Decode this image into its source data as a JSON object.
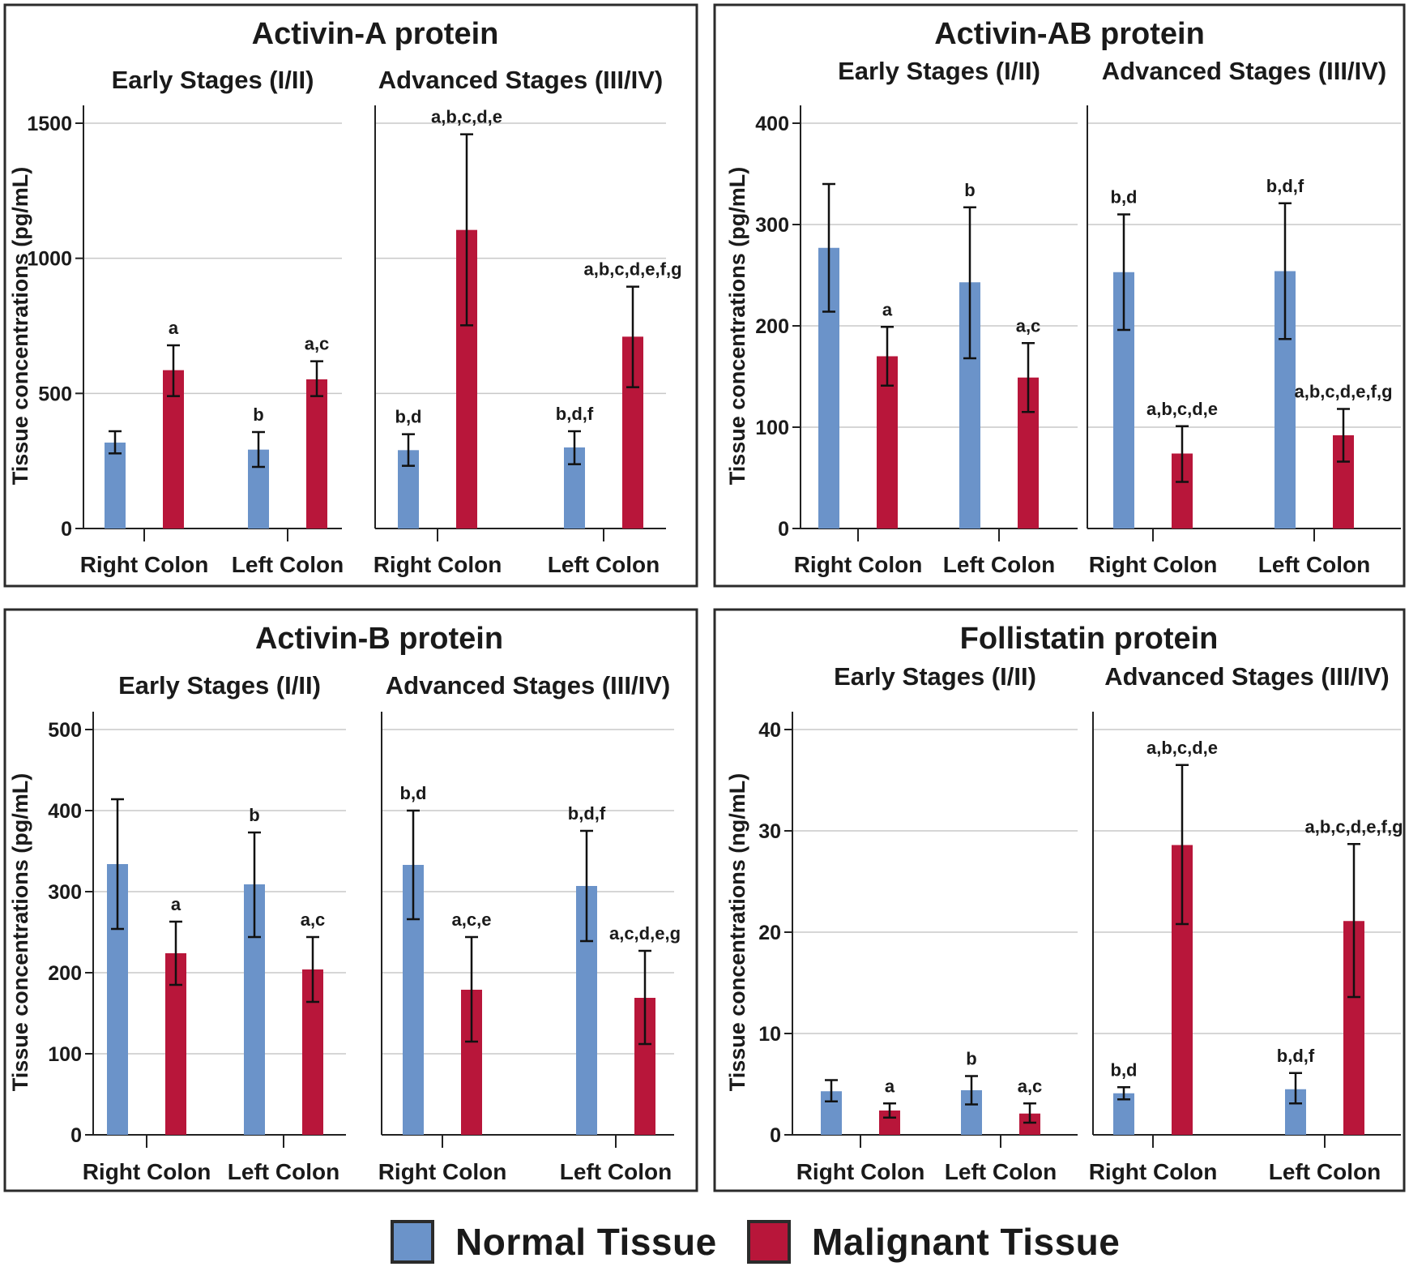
{
  "colors": {
    "normal": "#6b93c9",
    "malignant": "#b8163a",
    "frame": "#2b2b2b",
    "grid": "#c8c8c8"
  },
  "legend": {
    "normal_label": "Normal Tissue",
    "malignant_label": "Malignant Tissue"
  },
  "chart_data": [
    {
      "type": "bar",
      "title": "Activin-A protein",
      "ylabel": "Tissue concentrations (pg/mL)",
      "ylim": [
        0,
        1500
      ],
      "yticks": [
        0,
        500,
        1000,
        1500
      ],
      "categories": [
        "Right Colon",
        "Left Colon"
      ],
      "panels": [
        {
          "subtitle": "Early Stages (I/II)",
          "series": [
            {
              "name": "Normal Tissue",
              "values": [
                318,
                292
              ],
              "err_low": [
                278,
                228
              ],
              "err_high": [
                360,
                357
              ],
              "labels": [
                "",
                "b"
              ]
            },
            {
              "name": "Malignant Tissue",
              "values": [
                586,
                552
              ],
              "err_low": [
                490,
                490
              ],
              "err_high": [
                678,
                619
              ],
              "labels": [
                "a",
                "a,c"
              ]
            }
          ]
        },
        {
          "subtitle": "Advanced Stages (III/IV)",
          "series": [
            {
              "name": "Normal Tissue",
              "values": [
                290,
                300
              ],
              "err_low": [
                232,
                238
              ],
              "err_high": [
                349,
                360
              ],
              "labels": [
                "b,d",
                "b,d,f"
              ]
            },
            {
              "name": "Malignant Tissue",
              "values": [
                1105,
                710
              ],
              "err_low": [
                752,
                523
              ],
              "err_high": [
                1459,
                895
              ],
              "labels": [
                "a,b,c,d,e",
                "a,b,c,d,e,f,g"
              ]
            }
          ]
        }
      ]
    },
    {
      "type": "bar",
      "title": "Activin-AB protein",
      "ylabel": "Tissue concentrations (pg/mL)",
      "ylim": [
        0,
        400
      ],
      "yticks": [
        0,
        100,
        200,
        300,
        400
      ],
      "categories": [
        "Right Colon",
        "Left Colon"
      ],
      "panels": [
        {
          "subtitle": "Early Stages (I/II)",
          "series": [
            {
              "name": "Normal Tissue",
              "values": [
                277,
                243
              ],
              "err_low": [
                214,
                168
              ],
              "err_high": [
                340,
                317
              ],
              "labels": [
                "",
                "b"
              ]
            },
            {
              "name": "Malignant Tissue",
              "values": [
                170,
                149
              ],
              "err_low": [
                141,
                115
              ],
              "err_high": [
                199,
                183
              ],
              "labels": [
                "a",
                "a,c"
              ]
            }
          ]
        },
        {
          "subtitle": "Advanced Stages (III/IV)",
          "series": [
            {
              "name": "Normal Tissue",
              "values": [
                253,
                254
              ],
              "err_low": [
                196,
                187
              ],
              "err_high": [
                310,
                321
              ],
              "labels": [
                "b,d",
                "b,d,f"
              ]
            },
            {
              "name": "Malignant Tissue",
              "values": [
                74,
                92
              ],
              "err_low": [
                46,
                66
              ],
              "err_high": [
                101,
                118
              ],
              "labels": [
                "a,b,c,d,e",
                "a,b,c,d,e,f,g"
              ]
            }
          ]
        }
      ]
    },
    {
      "type": "bar",
      "title": "Activin-B protein",
      "ylabel": "Tissue concentrations (pg/mL)",
      "ylim": [
        0,
        500
      ],
      "yticks": [
        0,
        100,
        200,
        300,
        400,
        500
      ],
      "categories": [
        "Right Colon",
        "Left Colon"
      ],
      "panels": [
        {
          "subtitle": "Early Stages (I/II)",
          "series": [
            {
              "name": "Normal Tissue",
              "values": [
                334,
                309
              ],
              "err_low": [
                254,
                244
              ],
              "err_high": [
                414,
                373
              ],
              "labels": [
                "",
                "b"
              ]
            },
            {
              "name": "Malignant Tissue",
              "values": [
                224,
                204
              ],
              "err_low": [
                185,
                164
              ],
              "err_high": [
                263,
                244
              ],
              "labels": [
                "a",
                "a,c"
              ]
            }
          ]
        },
        {
          "subtitle": "Advanced Stages (III/IV)",
          "series": [
            {
              "name": "Normal Tissue",
              "values": [
                333,
                307
              ],
              "err_low": [
                266,
                239
              ],
              "err_high": [
                400,
                375
              ],
              "labels": [
                "b,d",
                "b,d,f"
              ]
            },
            {
              "name": "Malignant Tissue",
              "values": [
                179,
                169
              ],
              "err_low": [
                115,
                112
              ],
              "err_high": [
                244,
                227
              ],
              "labels": [
                "a,c,e",
                "a,c,d,e,g"
              ]
            }
          ]
        }
      ]
    },
    {
      "type": "bar",
      "title": "Follistatin protein",
      "ylabel": "Tissue concentrations (ng/mL)",
      "ylim": [
        0,
        40
      ],
      "yticks": [
        0,
        10,
        20,
        30,
        40
      ],
      "categories": [
        "Right Colon",
        "Left Colon"
      ],
      "panels": [
        {
          "subtitle": "Early Stages (I/II)",
          "series": [
            {
              "name": "Normal Tissue",
              "values": [
                4.3,
                4.4
              ],
              "err_low": [
                3.3,
                3.0
              ],
              "err_high": [
                5.4,
                5.8
              ],
              "labels": [
                "",
                "b"
              ]
            },
            {
              "name": "Malignant Tissue",
              "values": [
                2.4,
                2.1
              ],
              "err_low": [
                1.7,
                1.2
              ],
              "err_high": [
                3.1,
                3.1
              ],
              "labels": [
                "a",
                "a,c"
              ]
            }
          ]
        },
        {
          "subtitle": "Advanced Stages (III/IV)",
          "series": [
            {
              "name": "Normal Tissue",
              "values": [
                4.1,
                4.5
              ],
              "err_low": [
                3.5,
                3.1
              ],
              "err_high": [
                4.7,
                6.1
              ],
              "labels": [
                "b,d",
                "b,d,f"
              ]
            },
            {
              "name": "Malignant Tissue",
              "values": [
                28.6,
                21.1
              ],
              "err_low": [
                20.8,
                13.6
              ],
              "err_high": [
                36.5,
                28.7
              ],
              "labels": [
                "a,b,c,d,e",
                "a,b,c,d,e,f,g"
              ]
            }
          ]
        }
      ]
    }
  ]
}
